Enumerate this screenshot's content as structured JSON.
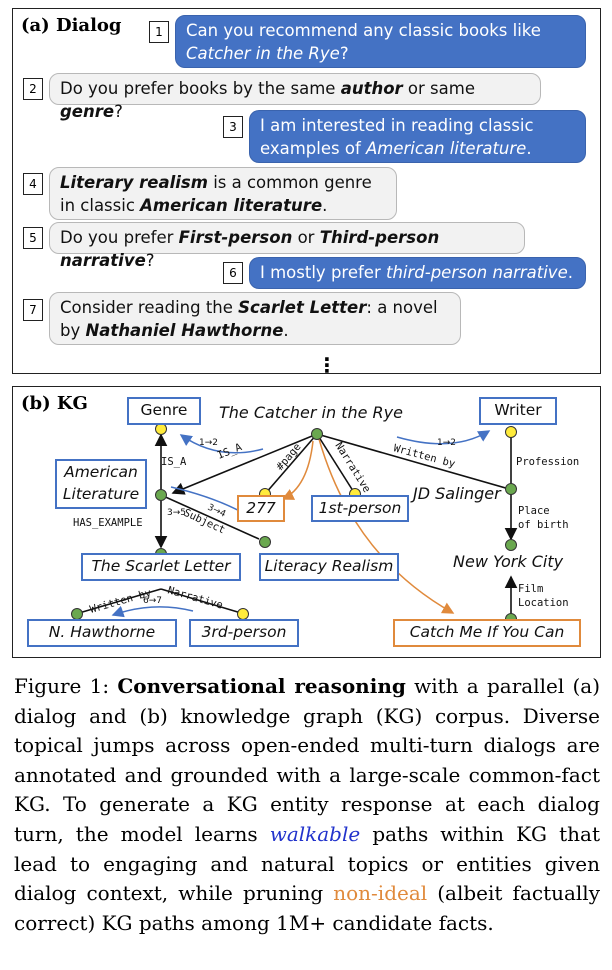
{
  "panel_a": {
    "title": "(a) Dialog",
    "turns": [
      {
        "n": "1",
        "parts": [
          "Can you recommend any classic books like ",
          "Catcher in the Rye",
          "?"
        ]
      },
      {
        "n": "2",
        "parts": [
          "Do you prefer books by the same ",
          "author",
          " or same ",
          "genre",
          "?"
        ]
      },
      {
        "n": "3",
        "parts": [
          "I am interested in reading classic examples of ",
          "American literature",
          "."
        ]
      },
      {
        "n": "4",
        "parts": [
          "Literary realism",
          " is a common genre in classic ",
          "American literature",
          "."
        ]
      },
      {
        "n": "5",
        "parts": [
          "Do you prefer ",
          "First-person",
          " or ",
          "Third-person narrative",
          "?"
        ]
      },
      {
        "n": "6",
        "parts": [
          "I mostly prefer ",
          "third-person narrative",
          "."
        ]
      },
      {
        "n": "7",
        "parts": [
          "Consider reading the ",
          "Scarlet Letter",
          ": a novel by ",
          "Nathaniel Hawthorne",
          "."
        ]
      }
    ],
    "ellipsis": "⋮"
  },
  "panel_b": {
    "title": "(b) KG",
    "entities": {
      "genre": "Genre",
      "catcher": "The Catcher in the Rye",
      "writer": "Writer",
      "american_lit_1": "American",
      "american_lit_2": "Literature",
      "page_277": "277",
      "first_person": "1st-person",
      "salinger": "JD Salinger",
      "scarlet": "The Scarlet Letter",
      "literacy_realism": "Literacy Realism",
      "nyc": "New York City",
      "hawthorne": "N. Hawthorne",
      "third_person": "3rd-person",
      "catch_me": "Catch Me If You Can"
    },
    "relations": {
      "is_a_1": "IS_A",
      "is_a_2": "IS_A",
      "page": "#page",
      "narrative_1": "Narrative",
      "written_by_1": "Written by",
      "profession": "Profession",
      "has_example": "HAS_EXAMPLE",
      "subject": "Subject",
      "place_1": "Place",
      "place_2": "of birth",
      "written_by_2": "Written by",
      "narrative_2": "Narrative",
      "film_1": "Film",
      "film_2": "Location"
    },
    "steps": {
      "s12a": "1→2",
      "s12b": "1→2",
      "s34": "3→4",
      "s35": "3→5",
      "s67": "6→7"
    },
    "colors": {
      "blue": "#4472c4",
      "orange": "#e08a3c",
      "node_green": "#6aa84f",
      "node_yellow": "#ffeb3b"
    }
  },
  "caption": {
    "label": "Figure 1: ",
    "bold": "Conversational reasoning",
    "text1": " with a parallel (a) dialog and (b) knowledge graph (KG) corpus. Diverse topical jumps across open-ended multi-turn dialogs are annotated and grounded with a large-scale common-fact KG. To generate a KG entity response at each dialog turn, the model learns ",
    "walkable": "walkable",
    "text2": " paths within KG that lead to engaging and natural topics or entities given dialog context, while pruning ",
    "nonideal": "non-ideal",
    "text3": " (albeit factually correct) KG paths among 1M+ candidate facts."
  }
}
